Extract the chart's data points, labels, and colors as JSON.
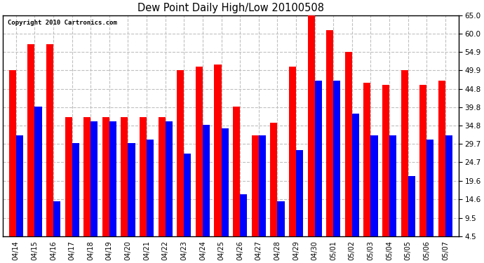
{
  "title": "Dew Point Daily High/Low 20100508",
  "copyright": "Copyright 2010 Cartronics.com",
  "dates": [
    "04/14",
    "04/15",
    "04/16",
    "04/17",
    "04/18",
    "04/19",
    "04/20",
    "04/21",
    "04/22",
    "04/23",
    "04/24",
    "04/25",
    "04/26",
    "04/27",
    "04/28",
    "04/29",
    "04/30",
    "05/01",
    "05/02",
    "05/03",
    "05/04",
    "05/05",
    "05/06",
    "05/07"
  ],
  "highs": [
    50.0,
    57.0,
    57.0,
    37.0,
    37.0,
    37.0,
    37.0,
    37.0,
    37.0,
    50.0,
    51.0,
    51.5,
    40.0,
    32.0,
    35.5,
    51.0,
    65.0,
    61.0,
    55.0,
    46.5,
    46.0,
    50.0,
    46.0,
    47.0
  ],
  "lows": [
    32.0,
    40.0,
    14.0,
    30.0,
    36.0,
    36.0,
    30.0,
    31.0,
    36.0,
    27.0,
    35.0,
    34.0,
    16.0,
    32.0,
    14.0,
    28.0,
    47.0,
    47.0,
    38.0,
    32.0,
    32.0,
    21.0,
    31.0,
    32.0
  ],
  "high_color": "#FF0000",
  "low_color": "#0000FF",
  "bg_color": "#FFFFFF",
  "plot_bg_color": "#FFFFFF",
  "grid_color": "#C0C0C0",
  "yticks": [
    4.5,
    9.5,
    14.6,
    19.6,
    24.7,
    29.7,
    34.8,
    39.8,
    44.8,
    49.9,
    54.9,
    60.0,
    65.0
  ],
  "ymin": 4.5,
  "ymax": 65.0
}
